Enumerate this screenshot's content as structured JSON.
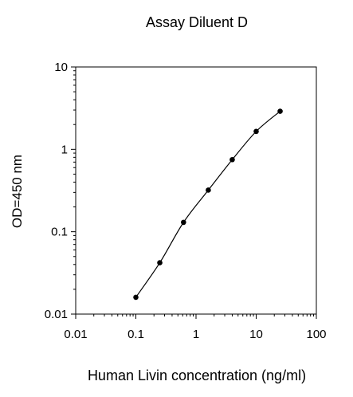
{
  "chart_data": {
    "type": "scatter",
    "title": "Assay Diluent D",
    "xlabel": "Human Livin concentration (ng/ml)",
    "ylabel": "OD=450 nm",
    "xscale": "log",
    "yscale": "log",
    "xlim": [
      0.01,
      100
    ],
    "ylim": [
      0.01,
      10
    ],
    "x_ticks": [
      0.01,
      0.1,
      1,
      10,
      100
    ],
    "x_tick_labels": [
      "0.01",
      "0.1",
      "1",
      "10",
      "100"
    ],
    "y_ticks": [
      0.01,
      0.1,
      1,
      10
    ],
    "y_tick_labels": [
      "0.01",
      "0.1",
      "1",
      "10"
    ],
    "grid": false,
    "series": [
      {
        "x": [
          0.1,
          0.25,
          0.62,
          1.6,
          4,
          10,
          25
        ],
        "y": [
          0.016,
          0.042,
          0.13,
          0.32,
          0.75,
          1.65,
          2.9
        ],
        "marker": "circle",
        "line": "smooth",
        "color": "#000000"
      }
    ]
  }
}
